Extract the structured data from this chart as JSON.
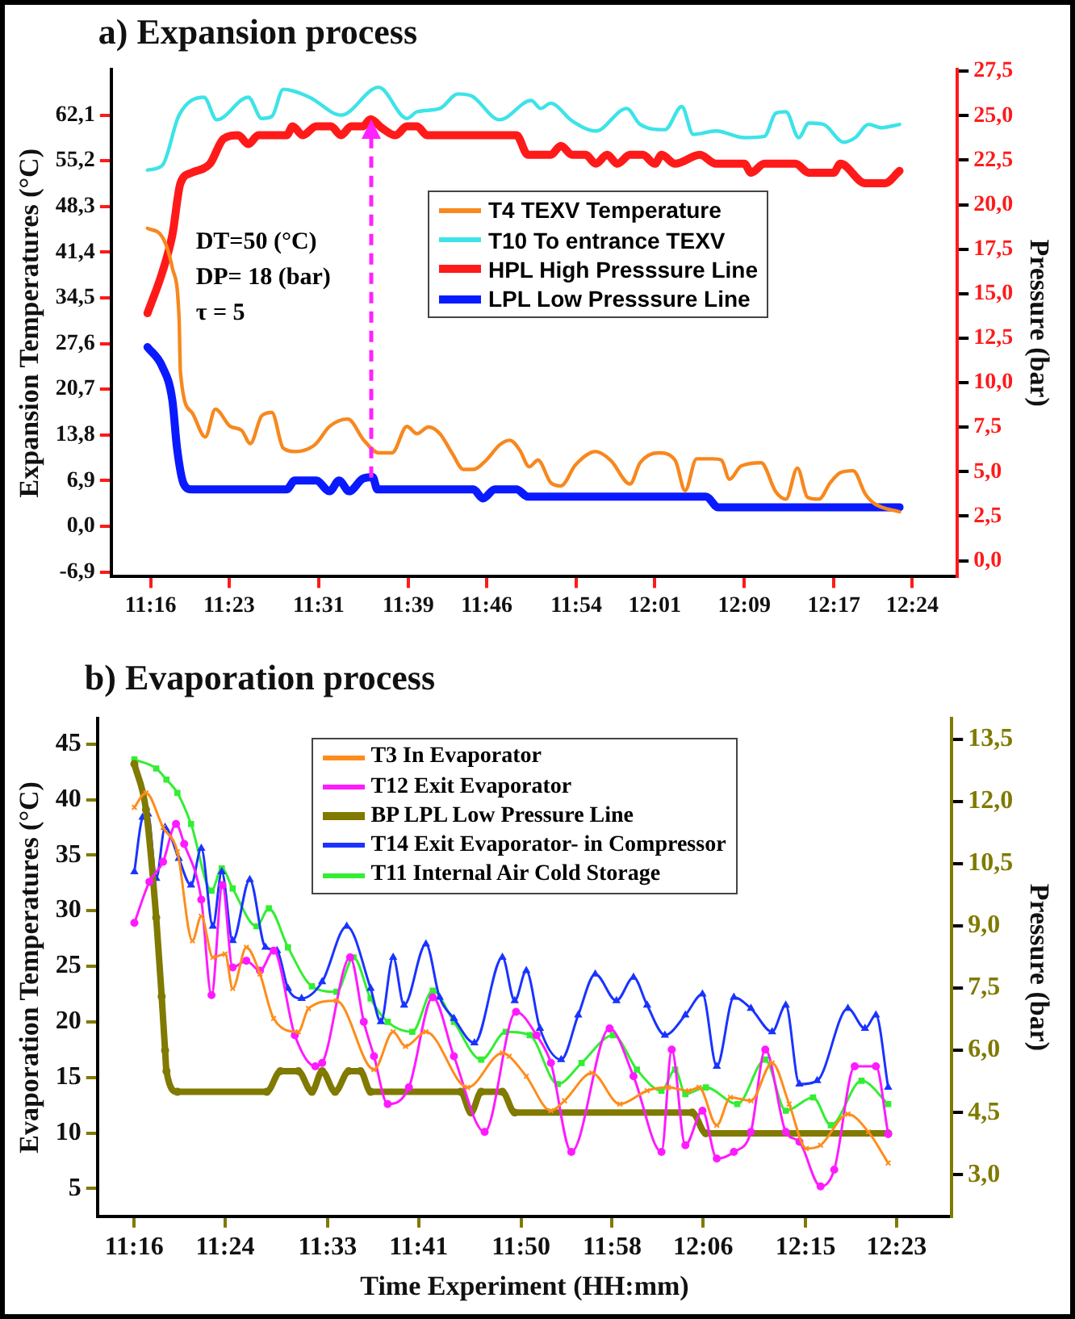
{
  "chart_data": [
    {
      "type": "line",
      "title": "a) Expansion process",
      "ylabel": "Expansion Temperatures (°C)",
      "y2label": "Pressure (bar)",
      "annotations": [
        "DT=50 (°C)",
        "DP= 18 (bar)",
        "τ = 5"
      ],
      "xlim": [
        11.208,
        12.467
      ],
      "xticks": [
        {
          "value": 11.2667,
          "label": "11:16"
        },
        {
          "value": 11.3833,
          "label": "11:23"
        },
        {
          "value": 11.5167,
          "label": "11:31"
        },
        {
          "value": 11.65,
          "label": "11:39"
        },
        {
          "value": 11.7667,
          "label": "11:46"
        },
        {
          "value": 11.9,
          "label": "11:54"
        },
        {
          "value": 12.0167,
          "label": "12:01"
        },
        {
          "value": 12.15,
          "label": "12:09"
        },
        {
          "value": 12.2833,
          "label": "12:17"
        },
        {
          "value": 12.4,
          "label": "12:24"
        }
      ],
      "ylim": [
        -7.6,
        69
      ],
      "yticks": [
        {
          "value": -6.9,
          "label": "-6,9"
        },
        {
          "value": 0,
          "label": "0,0"
        },
        {
          "value": 6.9,
          "label": "6,9"
        },
        {
          "value": 13.8,
          "label": "13,8"
        },
        {
          "value": 20.7,
          "label": "20,7"
        },
        {
          "value": 27.6,
          "label": "27,6"
        },
        {
          "value": 34.5,
          "label": "34,5"
        },
        {
          "value": 41.4,
          "label": "41,4"
        },
        {
          "value": 48.3,
          "label": "48,3"
        },
        {
          "value": 55.2,
          "label": "55,2"
        },
        {
          "value": 62.1,
          "label": "62,1"
        }
      ],
      "y2lim": [
        -0.9,
        27.6
      ],
      "y2ticks": [
        {
          "value": 0,
          "label": "0,0"
        },
        {
          "value": 2.5,
          "label": "2,5"
        },
        {
          "value": 5,
          "label": "5,0"
        },
        {
          "value": 7.5,
          "label": "7,5"
        },
        {
          "value": 10,
          "label": "10,0"
        },
        {
          "value": 12.5,
          "label": "12,5"
        },
        {
          "value": 15,
          "label": "15,0"
        },
        {
          "value": 17.5,
          "label": "17,5"
        },
        {
          "value": 20,
          "label": "20,0"
        },
        {
          "value": 22.5,
          "label": "22,5"
        },
        {
          "value": 25,
          "label": "25,0"
        },
        {
          "value": 27.5,
          "label": "27,5"
        }
      ],
      "grid": false,
      "legend": "top right",
      "marker": "none",
      "line_style": "solid",
      "series": [
        {
          "name": "T4 TEXV Temperature",
          "color": "#f7881e",
          "x": [
            11.262,
            11.284,
            11.299,
            11.309,
            11.311,
            11.328,
            11.348,
            11.363,
            11.385,
            11.402,
            11.415,
            11.432,
            11.447,
            11.464,
            11.483,
            11.503,
            11.513,
            11.533,
            11.56,
            11.584,
            11.606,
            11.626,
            11.648,
            11.663,
            11.68,
            11.697,
            11.715,
            11.732,
            11.747,
            11.766,
            11.786,
            11.801,
            11.816,
            11.83,
            11.843,
            11.862,
            11.877,
            11.899,
            11.929,
            11.951,
            11.98,
            11.995,
            12.022,
            12.047,
            12.062,
            12.079,
            12.103,
            12.116,
            12.128,
            12.145,
            12.175,
            12.197,
            12.212,
            12.229,
            12.244,
            12.261,
            12.278,
            12.293,
            12.312,
            12.33,
            12.344,
            12.381
          ],
          "values": [
            45.0,
            43.7,
            39.0,
            31.4,
            23.3,
            17.2,
            13.5,
            17.7,
            15.1,
            14.5,
            12.5,
            16.7,
            17.2,
            11.8,
            11.3,
            11.8,
            12.5,
            15.1,
            16.2,
            13.0,
            11.1,
            11.1,
            15.1,
            14.0,
            15.0,
            14.0,
            11.1,
            8.6,
            8.6,
            10.0,
            12.3,
            13.0,
            11.5,
            9.0,
            10.0,
            6.6,
            6.1,
            9.3,
            11.3,
            10.0,
            6.4,
            9.6,
            11.1,
            10.0,
            5.4,
            10.2,
            10.2,
            10.0,
            7.1,
            9.1,
            9.6,
            5.2,
            4.1,
            8.8,
            4.4,
            4.1,
            6.6,
            8.1,
            8.4,
            4.9,
            3.4,
            2.2
          ]
        },
        {
          "name": "T10 To entrance TEXV",
          "color": "#3de3e8",
          "x": [
            11.262,
            11.284,
            11.309,
            11.346,
            11.365,
            11.412,
            11.432,
            11.447,
            11.464,
            11.503,
            11.55,
            11.606,
            11.648,
            11.663,
            11.697,
            11.724,
            11.744,
            11.786,
            11.833,
            11.847,
            11.862,
            11.894,
            11.929,
            11.975,
            11.995,
            12.032,
            12.057,
            12.074,
            12.108,
            12.15,
            12.18,
            12.197,
            12.212,
            12.231,
            12.246,
            12.268,
            12.298,
            12.315,
            12.335,
            12.354,
            12.381
          ],
          "values": [
            53.8,
            54.5,
            62.1,
            64.8,
            61.4,
            64.8,
            61.6,
            61.9,
            66.0,
            64.8,
            62.1,
            66.3,
            61.6,
            62.6,
            63.1,
            65.3,
            65.0,
            61.4,
            64.3,
            63.1,
            63.9,
            61.2,
            59.7,
            63.1,
            60.7,
            59.9,
            63.4,
            59.2,
            59.7,
            58.7,
            58.9,
            62.4,
            62.6,
            58.7,
            60.9,
            60.7,
            58.0,
            58.7,
            60.7,
            60.2,
            60.7
          ]
        },
        {
          "name": "HPL High Presssure Line",
          "color": "#ff1a1a",
          "axis": "y2",
          "x": [
            11.262,
            11.284,
            11.299,
            11.311,
            11.328,
            11.355,
            11.375,
            11.397,
            11.412,
            11.427,
            11.469,
            11.478,
            11.493,
            11.513,
            11.535,
            11.55,
            11.565,
            11.582,
            11.594,
            11.611,
            11.631,
            11.648,
            11.663,
            11.678,
            11.811,
            11.828,
            11.862,
            11.877,
            11.894,
            11.914,
            11.929,
            11.946,
            11.961,
            11.98,
            11.999,
            12.017,
            12.027,
            12.047,
            12.084,
            12.108,
            12.15,
            12.16,
            12.18,
            12.226,
            12.246,
            12.283,
            12.293,
            12.33,
            12.359,
            12.381
          ],
          "values": [
            13.9,
            16.2,
            18.3,
            21.2,
            21.8,
            22.3,
            23.7,
            23.9,
            23.4,
            23.9,
            23.9,
            24.4,
            23.9,
            24.4,
            24.4,
            23.9,
            24.4,
            24.4,
            24.8,
            24.3,
            23.9,
            24.4,
            24.4,
            23.9,
            23.9,
            22.8,
            22.8,
            23.3,
            22.8,
            22.8,
            22.3,
            22.8,
            22.3,
            22.8,
            22.8,
            22.3,
            22.8,
            22.3,
            22.8,
            22.3,
            22.3,
            21.8,
            22.3,
            22.3,
            21.8,
            21.8,
            22.3,
            21.2,
            21.2,
            21.9
          ]
        },
        {
          "name": "LPL Low Presssure Line",
          "color": "#0a1aff",
          "axis": "y2",
          "x": [
            11.262,
            11.284,
            11.299,
            11.306,
            11.316,
            11.328,
            11.469,
            11.481,
            11.513,
            11.533,
            11.547,
            11.562,
            11.582,
            11.597,
            11.604,
            11.747,
            11.761,
            11.779,
            11.811,
            11.828,
            12.093,
            12.111,
            12.381
          ],
          "values": [
            12.0,
            10.9,
            9.0,
            6.3,
            4.3,
            4.0,
            4.0,
            4.5,
            4.5,
            3.9,
            4.5,
            3.9,
            4.6,
            4.7,
            4.0,
            4.0,
            3.5,
            4.0,
            4.0,
            3.6,
            3.6,
            3.0,
            3.0
          ]
        }
      ]
    },
    {
      "type": "line",
      "title": "b) Evaporation process",
      "xlabel": "Time Experiment (HH:mm)",
      "ylabel": "Evaporation Temperatures (°C)",
      "y2label": "Pressure (bar)",
      "xlim": [
        11.213,
        12.464
      ],
      "xticks": [
        {
          "value": 11.2667,
          "label": "11:16"
        },
        {
          "value": 11.4,
          "label": "11:24"
        },
        {
          "value": 11.55,
          "label": "11:33"
        },
        {
          "value": 11.6833,
          "label": "11:41"
        },
        {
          "value": 11.8333,
          "label": "11:50"
        },
        {
          "value": 11.9667,
          "label": "11:58"
        },
        {
          "value": 12.1,
          "label": "12:06"
        },
        {
          "value": 12.25,
          "label": "12:15"
        },
        {
          "value": 12.3833,
          "label": "12:23"
        }
      ],
      "ylim": [
        2.5,
        47.3
      ],
      "yticks": [
        5,
        10,
        15,
        20,
        25,
        30,
        35,
        40,
        45
      ],
      "y2lim": [
        2.0,
        14.0
      ],
      "y2ticks": [
        {
          "value": 3,
          "label": "3,0"
        },
        {
          "value": 4.5,
          "label": "4,5"
        },
        {
          "value": 6,
          "label": "6,0"
        },
        {
          "value": 7.5,
          "label": "7,5"
        },
        {
          "value": 9,
          "label": "9,0"
        },
        {
          "value": 10.5,
          "label": "10,5"
        },
        {
          "value": 12,
          "label": "12,0"
        },
        {
          "value": 13.5,
          "label": "13,5"
        }
      ],
      "grid": false,
      "legend": "top",
      "line_style": "solid",
      "series": [
        {
          "name": "T3 In Evaporator",
          "color": "#ff8c1a",
          "marker": "cross",
          "x": [
            11.267,
            11.284,
            11.309,
            11.33,
            11.352,
            11.365,
            11.382,
            11.4,
            11.411,
            11.431,
            11.451,
            11.471,
            11.507,
            11.522,
            11.563,
            11.618,
            11.646,
            11.664,
            11.694,
            11.755,
            11.806,
            11.816,
            11.841,
            11.877,
            11.897,
            11.937,
            11.978,
            12.018,
            12.049,
            12.079,
            12.094,
            12.12,
            12.14,
            12.17,
            12.201,
            12.226,
            12.251,
            12.272,
            12.312,
            12.342,
            12.371
          ],
          "values": [
            39.3,
            40.6,
            37.5,
            35.3,
            27.3,
            29.5,
            25.8,
            26.1,
            23.0,
            26.7,
            24.3,
            20.3,
            19.1,
            21.2,
            21.9,
            15.7,
            19.1,
            17.8,
            19.1,
            14.1,
            17.2,
            16.9,
            15.1,
            12.0,
            12.9,
            15.4,
            12.6,
            13.8,
            14.1,
            13.8,
            14.1,
            10.7,
            13.2,
            12.9,
            16.3,
            12.6,
            8.6,
            8.9,
            11.7,
            10.1,
            7.3
          ]
        },
        {
          "name": "T12 Exit Evaporator",
          "color": "#ff1aff",
          "marker": "circle",
          "x": [
            11.267,
            11.289,
            11.309,
            11.328,
            11.34,
            11.365,
            11.38,
            11.396,
            11.411,
            11.431,
            11.451,
            11.471,
            11.502,
            11.532,
            11.542,
            11.583,
            11.603,
            11.618,
            11.638,
            11.669,
            11.704,
            11.735,
            11.78,
            11.826,
            11.856,
            11.877,
            11.907,
            11.963,
            11.998,
            12.039,
            12.054,
            12.074,
            12.099,
            12.12,
            12.145,
            12.17,
            12.191,
            12.221,
            12.241,
            12.272,
            12.292,
            12.322,
            12.353,
            12.371
          ],
          "values": [
            28.9,
            32.6,
            34.4,
            37.8,
            36.0,
            31.0,
            22.4,
            32.3,
            24.9,
            25.5,
            24.6,
            26.4,
            18.8,
            16.0,
            16.3,
            25.8,
            20.0,
            16.9,
            12.6,
            14.1,
            22.2,
            16.9,
            10.1,
            20.9,
            18.8,
            16.3,
            8.3,
            19.4,
            15.1,
            8.3,
            17.5,
            8.9,
            12.0,
            7.7,
            8.3,
            10.1,
            17.5,
            10.1,
            9.2,
            5.2,
            6.7,
            16.0,
            16.0,
            9.9
          ]
        },
        {
          "name": "BP  LPL Low Pressure Line",
          "color": "#807a00",
          "axis": "y2",
          "marker": "circle",
          "x": [
            11.267,
            11.284,
            11.299,
            11.307,
            11.312,
            11.314,
            11.33,
            11.461,
            11.481,
            11.507,
            11.527,
            11.542,
            11.561,
            11.581,
            11.598,
            11.613,
            11.745,
            11.76,
            11.775,
            11.806,
            11.824,
            12.084,
            12.104,
            12.371
          ],
          "values": [
            12.9,
            11.8,
            9.2,
            7.3,
            6.0,
            5.5,
            5.0,
            5.0,
            5.5,
            5.5,
            5.0,
            5.5,
            5.0,
            5.5,
            5.5,
            5.0,
            5.0,
            4.5,
            5.0,
            5.0,
            4.5,
            4.5,
            4.0,
            4.0
          ]
        },
        {
          "name": "T14 Exit Evaporator- in Compressor",
          "color": "#1a33ff",
          "marker": "triangle",
          "x": [
            11.267,
            11.279,
            11.287,
            11.299,
            11.312,
            11.332,
            11.35,
            11.365,
            11.382,
            11.395,
            11.411,
            11.436,
            11.459,
            11.476,
            11.492,
            11.512,
            11.542,
            11.578,
            11.613,
            11.628,
            11.646,
            11.662,
            11.694,
            11.714,
            11.735,
            11.765,
            11.806,
            11.824,
            11.841,
            11.861,
            11.892,
            11.917,
            11.942,
            11.973,
            11.998,
            12.018,
            12.044,
            12.074,
            12.099,
            12.12,
            12.145,
            12.17,
            12.201,
            12.221,
            12.241,
            12.267,
            12.312,
            12.337,
            12.353,
            12.371
          ],
          "values": [
            33.5,
            38.4,
            38.7,
            32.9,
            37.5,
            34.7,
            32.3,
            35.6,
            28.6,
            33.5,
            27.3,
            32.8,
            26.7,
            26.4,
            23.0,
            22.1,
            23.6,
            28.6,
            23.0,
            20.0,
            25.8,
            21.5,
            27.0,
            22.2,
            20.3,
            18.1,
            25.8,
            21.9,
            24.6,
            19.4,
            16.6,
            20.6,
            24.3,
            21.9,
            24.0,
            21.5,
            18.8,
            20.6,
            22.5,
            16.0,
            22.2,
            21.2,
            19.1,
            21.5,
            14.4,
            14.7,
            21.2,
            19.4,
            20.6,
            14.1
          ]
        },
        {
          "name": "T11  Internal Air Cold Storage",
          "color": "#33ee33",
          "marker": "square",
          "x": [
            11.267,
            11.299,
            11.314,
            11.33,
            11.35,
            11.38,
            11.395,
            11.411,
            11.446,
            11.464,
            11.492,
            11.527,
            11.563,
            11.588,
            11.613,
            11.638,
            11.674,
            11.704,
            11.735,
            11.775,
            11.811,
            11.846,
            11.887,
            11.922,
            11.968,
            12.003,
            12.039,
            12.059,
            12.074,
            12.104,
            12.15,
            12.191,
            12.221,
            12.261,
            12.287,
            12.332,
            12.371
          ],
          "values": [
            43.6,
            42.8,
            41.8,
            40.6,
            37.8,
            31.8,
            33.8,
            32.0,
            28.6,
            30.2,
            26.7,
            23.2,
            22.7,
            25.8,
            22.1,
            20.0,
            19.1,
            22.8,
            20.0,
            16.6,
            19.1,
            18.8,
            14.4,
            16.3,
            18.8,
            15.7,
            13.8,
            15.7,
            13.5,
            14.1,
            12.6,
            16.6,
            12.0,
            13.2,
            10.7,
            14.7,
            12.6
          ]
        }
      ]
    }
  ]
}
